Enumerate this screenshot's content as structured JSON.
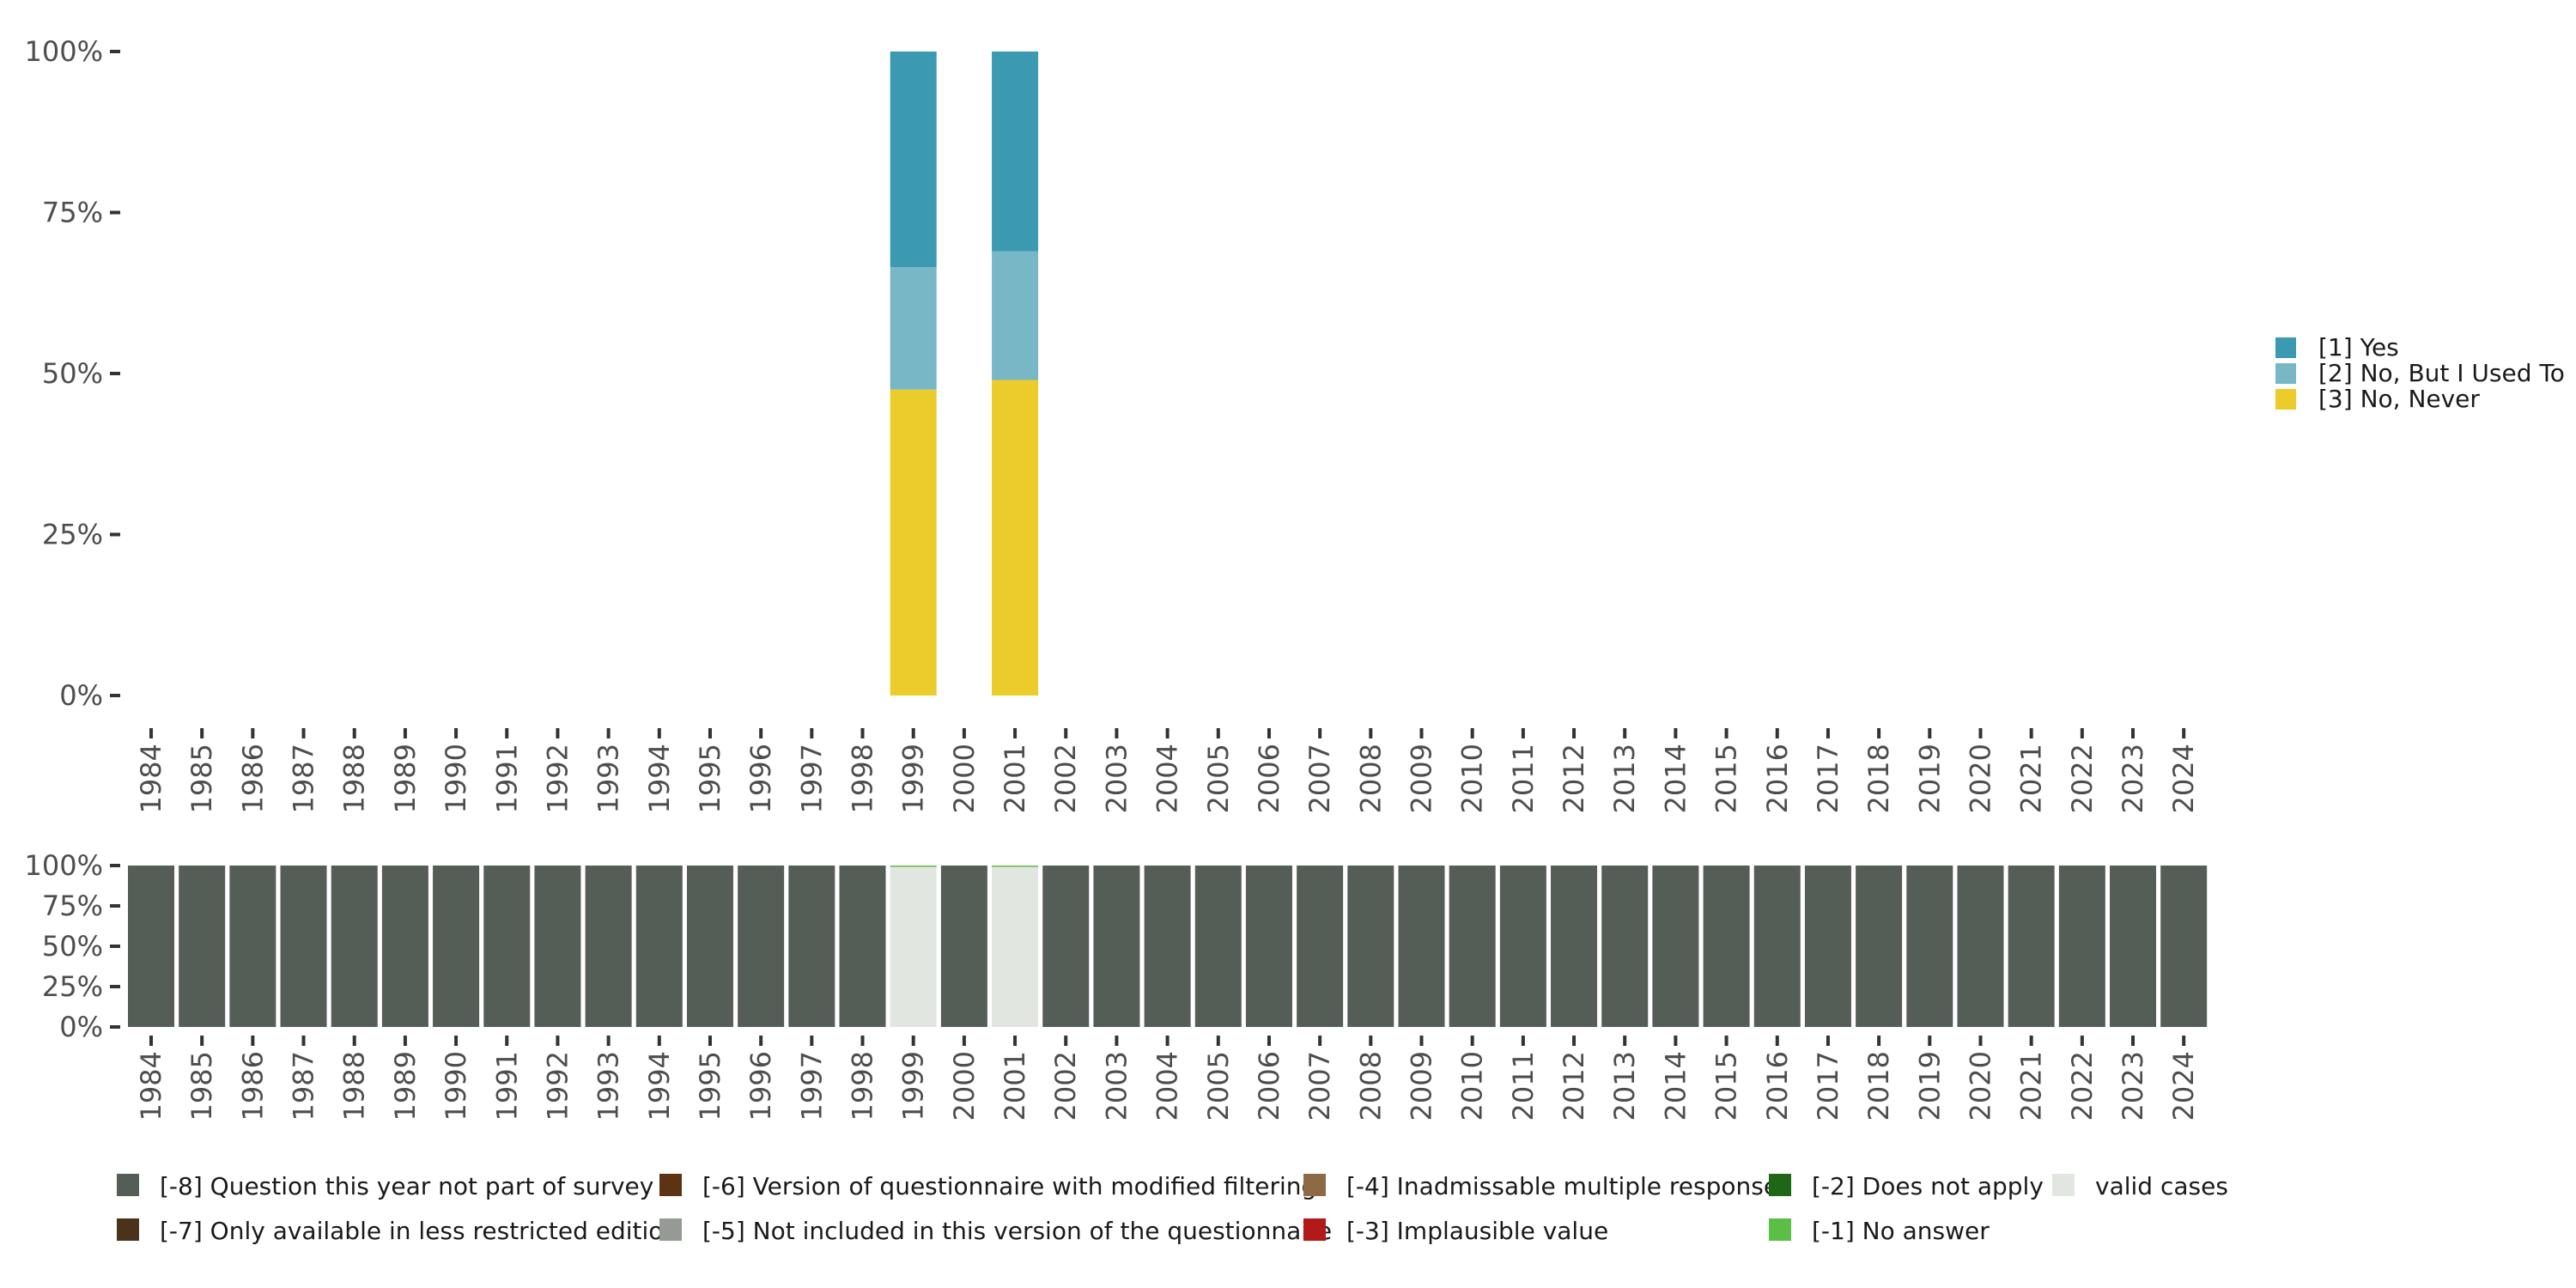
{
  "chart_data": [
    {
      "type": "bar",
      "stacked": true,
      "categories": [
        "1984",
        "1985",
        "1986",
        "1987",
        "1988",
        "1989",
        "1990",
        "1991",
        "1992",
        "1993",
        "1994",
        "1995",
        "1996",
        "1997",
        "1998",
        "1999",
        "2000",
        "2001",
        "2002",
        "2003",
        "2004",
        "2005",
        "2006",
        "2007",
        "2008",
        "2009",
        "2010",
        "2011",
        "2012",
        "2013",
        "2014",
        "2015",
        "2016",
        "2017",
        "2018",
        "2019",
        "2020",
        "2021",
        "2022",
        "2023",
        "2024"
      ],
      "y_ticks": [
        "0%",
        "25%",
        "50%",
        "75%",
        "100%"
      ],
      "ylim": [
        0,
        100
      ],
      "series": [
        {
          "name": "[3] No, Never",
          "color": "#EBCC2A",
          "values": {
            "1999": 47.5,
            "2001": 49.0
          }
        },
        {
          "name": "[2] No, But I Used To",
          "color": "#78B7C5",
          "values": {
            "1999": 19.0,
            "2001": 20.0
          }
        },
        {
          "name": "[1] Yes",
          "color": "#3B9AB2",
          "values": {
            "1999": 33.5,
            "2001": 31.0
          }
        }
      ],
      "legend": [
        "[1] Yes",
        "[2] No, But I Used To",
        "[3] No, Never"
      ],
      "legend_colors": [
        "#3B9AB2",
        "#78B7C5",
        "#EBCC2A"
      ],
      "legend_position": "right"
    },
    {
      "type": "bar",
      "stacked": true,
      "categories": [
        "1984",
        "1985",
        "1986",
        "1987",
        "1988",
        "1989",
        "1990",
        "1991",
        "1992",
        "1993",
        "1994",
        "1995",
        "1996",
        "1997",
        "1998",
        "1999",
        "2000",
        "2001",
        "2002",
        "2003",
        "2004",
        "2005",
        "2006",
        "2007",
        "2008",
        "2009",
        "2010",
        "2011",
        "2012",
        "2013",
        "2014",
        "2015",
        "2016",
        "2017",
        "2018",
        "2019",
        "2020",
        "2021",
        "2022",
        "2023",
        "2024"
      ],
      "y_ticks": [
        "0%",
        "25%",
        "50%",
        "75%",
        "100%"
      ],
      "ylim": [
        0,
        100
      ],
      "default_status": "[-8] Question this year not part of survey",
      "valid_years": [
        "1999",
        "2001"
      ],
      "valid_status": "valid cases",
      "no_answer_share_in_valid_years": 0.5,
      "legend_position": "bottom",
      "legend": [
        {
          "label": "[-8] Question this year not part of survey",
          "color": "#555D57"
        },
        {
          "label": "[-7] Only available in less restricted edition",
          "color": "#4A331A"
        },
        {
          "label": "[-6] Version of questionnaire with modified filtering",
          "color": "#5C3414"
        },
        {
          "label": "[-5] Not included in this version of the questionnaire",
          "color": "#969A94"
        },
        {
          "label": "[-4] Inadmissable multiple response",
          "color": "#8C6A45"
        },
        {
          "label": "[-3] Implausible value",
          "color": "#B21A1A"
        },
        {
          "label": "[-2] Does not apply",
          "color": "#1F6616"
        },
        {
          "label": "[-1] No answer",
          "color": "#5CBF45"
        },
        {
          "label": "valid cases",
          "color": "#E1E6E0"
        }
      ]
    }
  ]
}
